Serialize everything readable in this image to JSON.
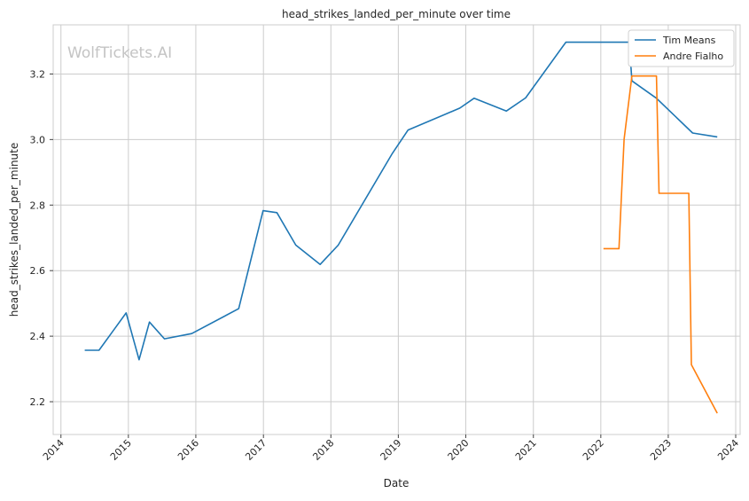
{
  "chart_data": {
    "type": "line",
    "title": "head_strikes_landed_per_minute over time",
    "xlabel": "Date",
    "ylabel": "head_strikes_landed_per_minute",
    "watermark": "WolfTickets.AI",
    "xlim": [
      "2013-11-20",
      "2024-01-25"
    ],
    "ylim": [
      2.1,
      3.35
    ],
    "x_ticks": [
      "2014",
      "2015",
      "2016",
      "2017",
      "2018",
      "2019",
      "2020",
      "2021",
      "2022",
      "2023",
      "2024"
    ],
    "y_ticks": [
      "2.2",
      "2.4",
      "2.6",
      "2.8",
      "3.0",
      "3.2"
    ],
    "grid": true,
    "legend_position": "top-right",
    "series": [
      {
        "name": "Tim Means",
        "color": "#1f77b4",
        "points": [
          [
            "2014-05-10",
            2.357
          ],
          [
            "2014-07-26",
            2.357
          ],
          [
            "2014-12-20",
            2.471
          ],
          [
            "2015-02-28",
            2.328
          ],
          [
            "2015-04-25",
            2.443
          ],
          [
            "2015-07-15",
            2.392
          ],
          [
            "2015-12-10",
            2.408
          ],
          [
            "2016-08-20",
            2.484
          ],
          [
            "2016-12-30",
            2.783
          ],
          [
            "2017-03-15",
            2.777
          ],
          [
            "2017-06-25",
            2.678
          ],
          [
            "2017-11-04",
            2.619
          ],
          [
            "2018-02-10",
            2.678
          ],
          [
            "2018-11-30",
            2.958
          ],
          [
            "2019-02-23",
            3.029
          ],
          [
            "2019-11-30",
            3.096
          ],
          [
            "2020-02-15",
            3.126
          ],
          [
            "2020-08-08",
            3.087
          ],
          [
            "2020-11-20",
            3.127
          ],
          [
            "2021-06-26",
            3.297
          ],
          [
            "2022-06-04",
            3.297
          ],
          [
            "2022-06-18",
            3.179
          ],
          [
            "2022-10-29",
            3.126
          ],
          [
            "2023-05-13",
            3.02
          ],
          [
            "2023-09-23",
            3.008
          ]
        ]
      },
      {
        "name": "Andre Fialho",
        "color": "#ff7f0e",
        "points": [
          [
            "2022-01-15",
            2.667
          ],
          [
            "2022-04-09",
            2.667
          ],
          [
            "2022-05-07",
            3.001
          ],
          [
            "2022-06-18",
            3.194
          ],
          [
            "2022-10-29",
            3.194
          ],
          [
            "2022-11-12",
            2.836
          ],
          [
            "2023-04-22",
            2.836
          ],
          [
            "2023-05-06",
            2.313
          ],
          [
            "2023-09-23",
            2.165
          ]
        ]
      }
    ]
  }
}
